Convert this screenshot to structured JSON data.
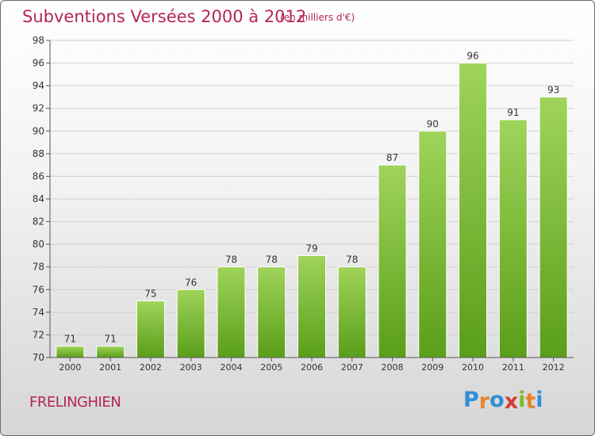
{
  "title": "Subventions Versées 2000 à 2012",
  "subtitle": "(en milliers d'€)",
  "commune": "FRELINGHIEN",
  "logo": {
    "letters": [
      "P",
      "r",
      "o",
      "x",
      "i",
      "t",
      "i"
    ],
    "colors": [
      "#2f8fd6",
      "#e8842c",
      "#2f8fd6",
      "#d83a3a",
      "#7cbc2f",
      "#e8842c",
      "#2f8fd6"
    ]
  },
  "colors": {
    "accent": "#b5245a",
    "bar_light": "#9fd45a",
    "bar_dark": "#5a9e1a",
    "grid": "#d0d0d0"
  },
  "chart_data": {
    "type": "bar",
    "categories": [
      "2000",
      "2001",
      "2002",
      "2003",
      "2004",
      "2005",
      "2006",
      "2007",
      "2008",
      "2009",
      "2010",
      "2011",
      "2012"
    ],
    "values": [
      71,
      71,
      75,
      76,
      78,
      78,
      79,
      78,
      87,
      90,
      96,
      91,
      93
    ],
    "ylim": [
      70,
      98
    ],
    "yticks": [
      70,
      72,
      74,
      76,
      78,
      80,
      82,
      84,
      86,
      88,
      90,
      92,
      94,
      96,
      98
    ],
    "grid": true,
    "data_labels": true
  }
}
